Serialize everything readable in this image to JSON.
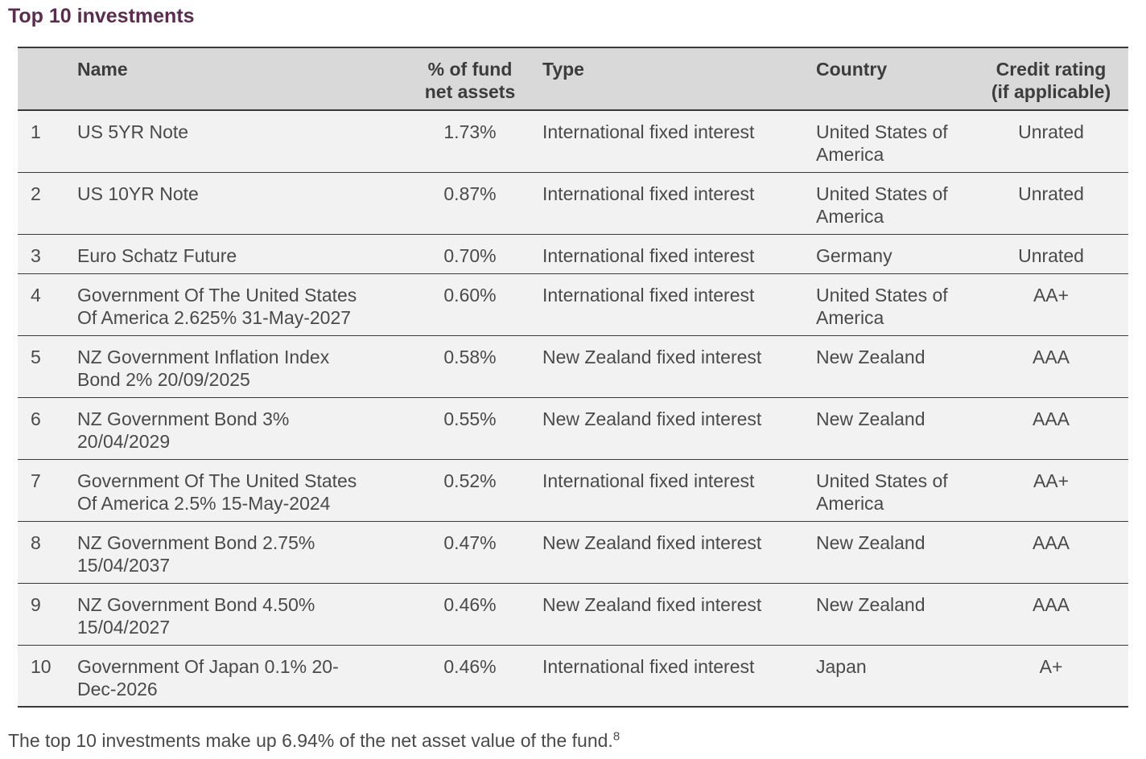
{
  "title": "Top 10 investments",
  "columns": {
    "rank": "",
    "name": "Name",
    "pct_line1": "% of fund",
    "pct_line2": "net assets",
    "type": "Type",
    "country": "Country",
    "rating_line1": "Credit rating",
    "rating_line2": "(if applicable)"
  },
  "rows": [
    {
      "rank": "1",
      "name_l1": "US 5YR Note",
      "name_l2": "",
      "pct": "1.73%",
      "type": "International fixed interest",
      "country_l1": "United States of",
      "country_l2": "America",
      "rating": "Unrated"
    },
    {
      "rank": "2",
      "name_l1": "US 10YR Note",
      "name_l2": "",
      "pct": "0.87%",
      "type": "International fixed interest",
      "country_l1": "United States of",
      "country_l2": "America",
      "rating": "Unrated"
    },
    {
      "rank": "3",
      "name_l1": "Euro Schatz Future",
      "name_l2": "",
      "pct": "0.70%",
      "type": "International fixed interest",
      "country_l1": "Germany",
      "country_l2": "",
      "rating": "Unrated"
    },
    {
      "rank": "4",
      "name_l1": "Government Of The United States",
      "name_l2": "Of America 2.625% 31-May-2027",
      "pct": "0.60%",
      "type": "International fixed interest",
      "country_l1": "United States of",
      "country_l2": "America",
      "rating": "AA+"
    },
    {
      "rank": "5",
      "name_l1": "NZ Government Inflation Index",
      "name_l2": "Bond 2% 20/09/2025",
      "pct": "0.58%",
      "type": "New Zealand fixed interest",
      "country_l1": "New Zealand",
      "country_l2": "",
      "rating": "AAA"
    },
    {
      "rank": "6",
      "name_l1": "NZ Government Bond 3%",
      "name_l2": "20/04/2029",
      "pct": "0.55%",
      "type": "New Zealand fixed interest",
      "country_l1": "New Zealand",
      "country_l2": "",
      "rating": "AAA"
    },
    {
      "rank": "7",
      "name_l1": "Government Of The United States",
      "name_l2": "Of America 2.5% 15-May-2024",
      "pct": "0.52%",
      "type": "International fixed interest",
      "country_l1": "United States of",
      "country_l2": "America",
      "rating": "AA+"
    },
    {
      "rank": "8",
      "name_l1": "NZ Government Bond 2.75%",
      "name_l2": "15/04/2037",
      "pct": "0.47%",
      "type": "New Zealand fixed interest",
      "country_l1": "New Zealand",
      "country_l2": "",
      "rating": "AAA"
    },
    {
      "rank": "9",
      "name_l1": "NZ Government Bond 4.50%",
      "name_l2": "15/04/2027",
      "pct": "0.46%",
      "type": "New Zealand fixed interest",
      "country_l1": "New Zealand",
      "country_l2": "",
      "rating": "AAA"
    },
    {
      "rank": "10",
      "name_l1": "Government Of Japan 0.1% 20-",
      "name_l2": "Dec-2026",
      "pct": "0.46%",
      "type": "International fixed interest",
      "country_l1": "Japan",
      "country_l2": "",
      "rating": "A+"
    }
  ],
  "footnote": {
    "text": "The top 10 investments make up 6.94% of the net asset value of the fund.",
    "ref": "8"
  },
  "colors": {
    "title": "#5a2d4f",
    "header_bg": "#d9d9d9",
    "row_bg": "#f2f2f2",
    "rule": "#3a3a3a"
  }
}
